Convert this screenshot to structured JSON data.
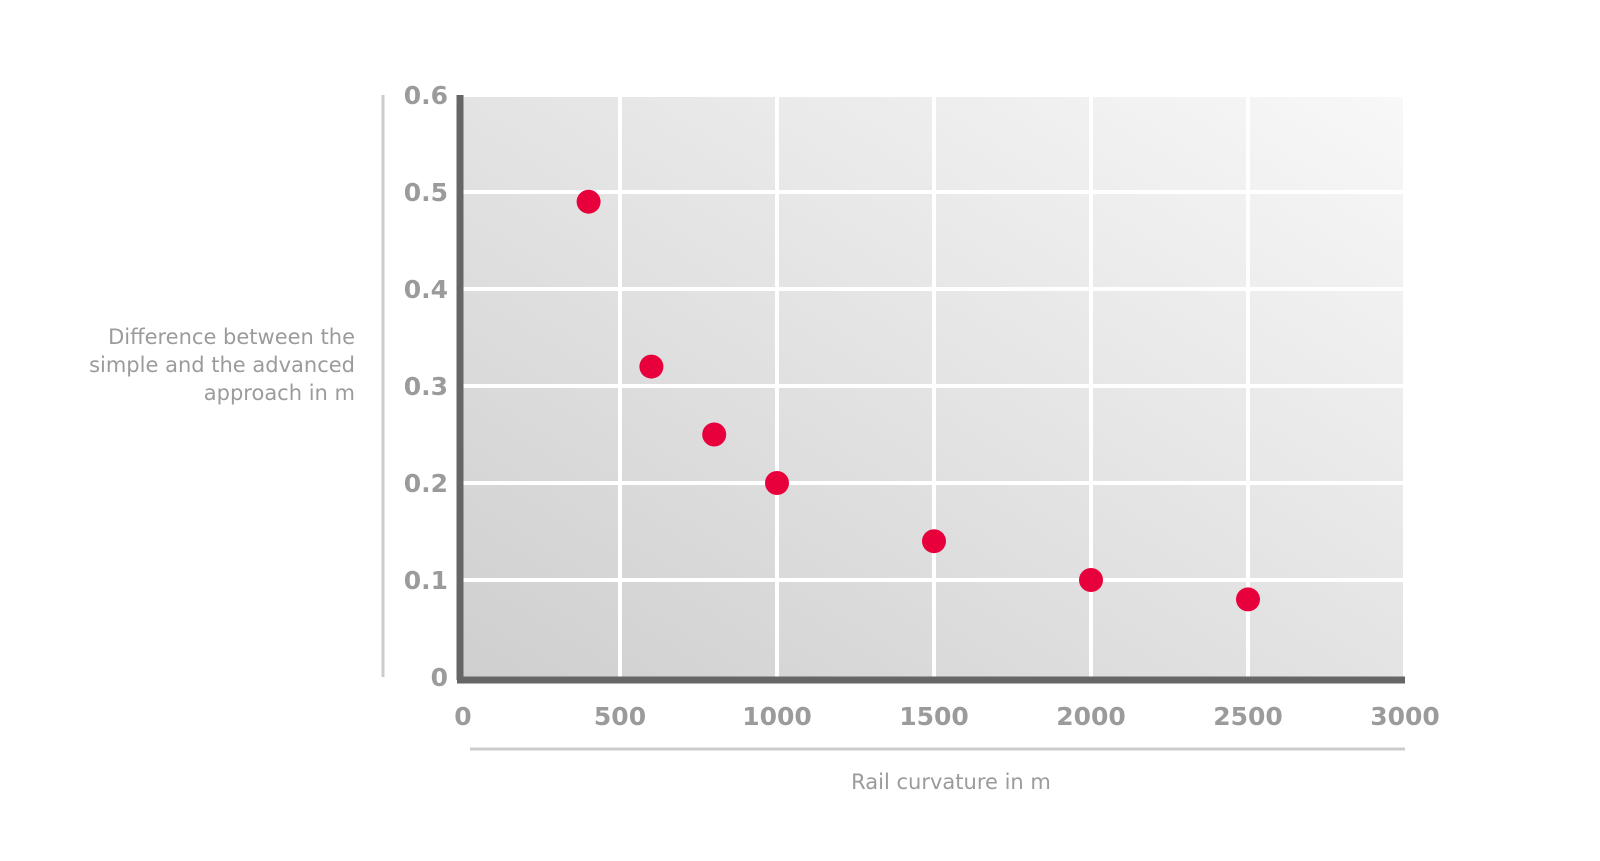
{
  "chart_data": {
    "type": "scatter",
    "title": "",
    "xlabel": "Rail curvature in m",
    "ylabel_lines": [
      "Difference between the",
      "simple and the advanced",
      "approach in m"
    ],
    "xlim": [
      0,
      3000
    ],
    "ylim": [
      0,
      0.6
    ],
    "x_ticks": [
      "0",
      "500",
      "1000",
      "1500",
      "2000",
      "2500",
      "3000"
    ],
    "y_ticks": [
      "0",
      "0.1",
      "0.2",
      "0.3",
      "0.4",
      "0.5",
      "0.6"
    ],
    "grid": true,
    "legend": "none",
    "series": [
      {
        "points": [
          {
            "x": 400,
            "y": 0.49
          },
          {
            "x": 600,
            "y": 0.32
          },
          {
            "x": 800,
            "y": 0.25
          },
          {
            "x": 1000,
            "y": 0.2
          },
          {
            "x": 1500,
            "y": 0.14
          },
          {
            "x": 2000,
            "y": 0.1
          },
          {
            "x": 2500,
            "y": 0.08
          }
        ]
      }
    ],
    "colors": {
      "marker": "#e8003c",
      "axis": "#666666",
      "gridline": "#ffffff",
      "text": "#9b9b9b",
      "bracket": "#cccccc"
    }
  }
}
